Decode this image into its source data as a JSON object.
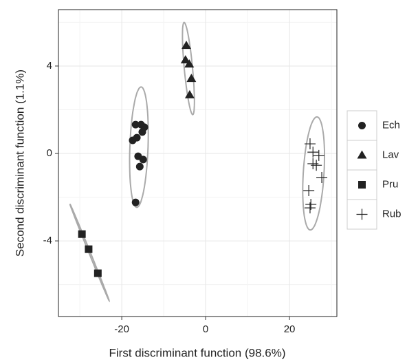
{
  "chart_data": {
    "type": "scatter",
    "x_label": "First discriminant function (98.6%)",
    "y_label": "Second discriminant function (1.1%)",
    "xlim": [
      -35.1,
      31.3
    ],
    "ylim": [
      -7.46,
      6.58
    ],
    "xticks": [
      -20,
      0,
      20
    ],
    "yticks": [
      -4,
      0,
      4
    ],
    "grid": true,
    "legend": "right",
    "series": [
      {
        "name": "Ech",
        "color": "#222222",
        "shape": "circle",
        "x": [
          -16.7,
          -15.4,
          -14.6,
          -15.1,
          -16.4,
          -17.4,
          -16.1,
          -14.9,
          -15.7,
          -16.7
        ],
        "values": [
          1.32,
          1.32,
          1.2,
          0.98,
          0.72,
          0.6,
          -0.13,
          -0.28,
          -0.6,
          -2.24
        ]
      },
      {
        "name": "Lav",
        "color": "#222222",
        "shape": "triangle",
        "x": [
          -4.6,
          -4.8,
          -3.9,
          -3.4,
          -3.8
        ],
        "values": [
          4.94,
          4.28,
          4.09,
          3.43,
          2.68
        ]
      },
      {
        "name": "Pru",
        "color": "#222222",
        "shape": "square",
        "x": [
          -29.5,
          -27.9,
          -25.7
        ],
        "values": [
          -3.69,
          -4.38,
          -5.48
        ]
      },
      {
        "name": "Rub",
        "color": "#222222",
        "shape": "plus",
        "x": [
          24.9,
          25.6,
          27.0,
          25.6,
          26.4,
          27.7,
          24.6,
          25.1,
          24.9
        ],
        "values": [
          0.44,
          0.06,
          -0.09,
          -0.47,
          -0.54,
          -1.1,
          -1.7,
          -2.33,
          -2.49
        ]
      }
    ]
  }
}
